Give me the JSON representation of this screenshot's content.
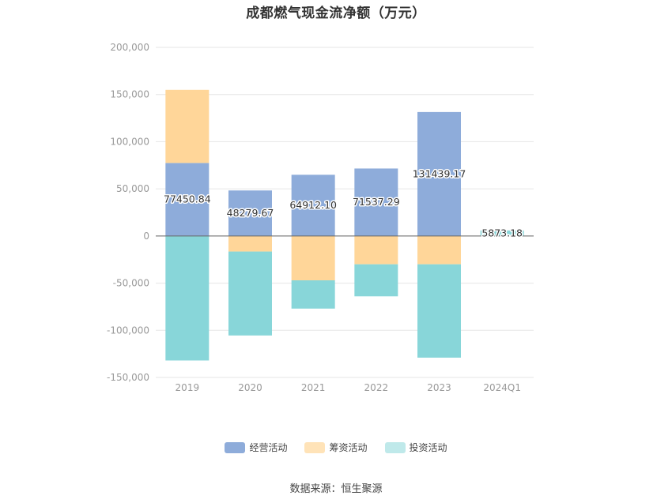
{
  "chart_data": {
    "type": "bar",
    "stacked": true,
    "title": "成都燃气现金流净额（万元）",
    "categories": [
      "2019",
      "2020",
      "2021",
      "2022",
      "2023",
      "2024Q1"
    ],
    "series": [
      {
        "name": "经营活动",
        "color": "#8eacda",
        "values": [
          77450.84,
          48279.67,
          64912.1,
          71537.29,
          131439.17,
          0
        ]
      },
      {
        "name": "筹资活动",
        "color": "#ffd699",
        "values": [
          77500,
          -16500,
          -47000,
          -30000,
          -30000,
          0
        ]
      },
      {
        "name": "投资活动",
        "color": "#88d6d9",
        "values": [
          -132000,
          -89000,
          -30000,
          -34000,
          -99000,
          5873.18
        ]
      }
    ],
    "data_labels": [
      "77450.84",
      "48279.67",
      "64912.10",
      "71537.29",
      "131439.17",
      "5873.18"
    ],
    "ylim": [
      -150000,
      200000
    ],
    "yticks": [
      200000,
      150000,
      100000,
      50000,
      0,
      -50000,
      -100000,
      -150000
    ],
    "ytick_labels": [
      "200,000",
      "150,000",
      "100,000",
      "50,000",
      "0",
      "-50,000",
      "-100,000",
      "-150,000"
    ],
    "grid": true,
    "legend_position": "bottom",
    "xlabel": "",
    "ylabel": ""
  },
  "legend": [
    {
      "label": "经营活动",
      "color": "#8eacda"
    },
    {
      "label": "筹资活动",
      "color": "#ffe3b8"
    },
    {
      "label": "投资活动",
      "color": "#bfe9ea"
    }
  ],
  "source_text": "数据来源：恒生聚源"
}
